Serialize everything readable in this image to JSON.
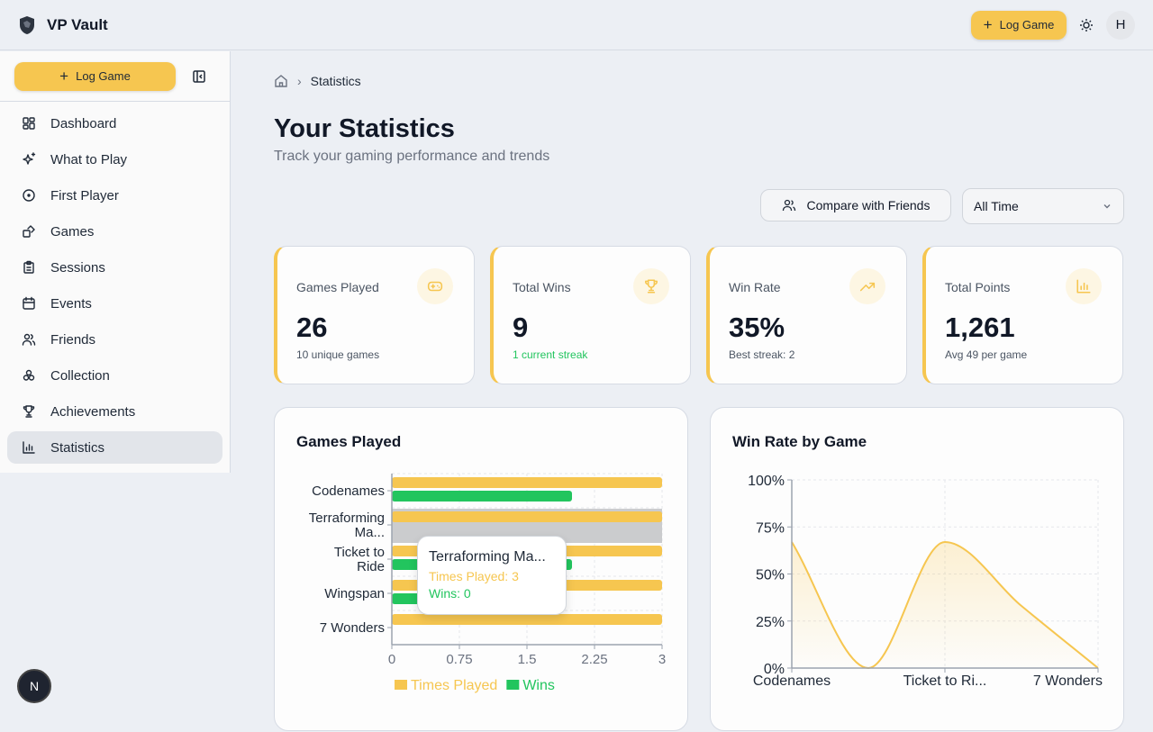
{
  "app": {
    "title": "VP Vault",
    "log_game": "Log Game",
    "avatar": "H"
  },
  "sidebar": {
    "log_game": "Log Game",
    "items": [
      {
        "label": "Dashboard",
        "icon": "grid-icon"
      },
      {
        "label": "What to Play",
        "icon": "sparkles-icon"
      },
      {
        "label": "First Player",
        "icon": "target-icon"
      },
      {
        "label": "Games",
        "icon": "dice-icon"
      },
      {
        "label": "Sessions",
        "icon": "clipboard-icon"
      },
      {
        "label": "Events",
        "icon": "calendar-icon"
      },
      {
        "label": "Friends",
        "icon": "users-icon"
      },
      {
        "label": "Collection",
        "icon": "collection-icon"
      },
      {
        "label": "Achievements",
        "icon": "trophy-icon"
      },
      {
        "label": "Statistics",
        "icon": "bar-chart-icon",
        "active": true
      }
    ]
  },
  "breadcrumb": {
    "current": "Statistics"
  },
  "page": {
    "title": "Your Statistics",
    "subtitle": "Track your gaming performance and trends",
    "compare": "Compare with Friends",
    "period": "All Time"
  },
  "cards": [
    {
      "label": "Games Played",
      "value": "26",
      "sub": "10 unique games",
      "icon": "gamepad-icon"
    },
    {
      "label": "Total Wins",
      "value": "9",
      "sub": "1 current streak",
      "icon": "trophy-icon"
    },
    {
      "label": "Win Rate",
      "value": "35%",
      "sub": "Best streak: 2",
      "icon": "trending-up-icon"
    },
    {
      "label": "Total Points",
      "value": "1,261",
      "sub": "Avg 49 per game",
      "icon": "bar-chart-icon"
    }
  ],
  "accent": "#f6c650",
  "win_color": "#22c55e",
  "chart_data": [
    {
      "type": "bar",
      "orientation": "horizontal",
      "title": "Games Played",
      "categories": [
        "Codenames",
        "Terraforming Ma...",
        "Ticket to Ride",
        "Wingspan",
        "7 Wonders"
      ],
      "series": [
        {
          "name": "Times Played",
          "color": "#f6c650",
          "values": [
            3,
            3,
            3,
            3,
            3
          ]
        },
        {
          "name": "Wins",
          "color": "#22c55e",
          "values": [
            2,
            0,
            2,
            1,
            0
          ]
        }
      ],
      "xlim": [
        0,
        3
      ],
      "xticks": [
        "0",
        "0.75",
        "1.5",
        "2.25",
        "3"
      ],
      "grid": true,
      "legend": "bottom",
      "tooltip": {
        "title": "Terraforming Ma...",
        "lines": [
          "Times Played: 3",
          "Wins: 0"
        ]
      }
    },
    {
      "type": "area",
      "title": "Win Rate by Game",
      "categories": [
        "Codenames",
        "Terraforming Ma...",
        "Ticket to Ri...",
        "Wingspan",
        "7 Wonders"
      ],
      "shown_xticks": [
        "Codenames",
        "Ticket to Ri...",
        "7 Wonders"
      ],
      "values": [
        67,
        0,
        67,
        33,
        0
      ],
      "ylim": [
        0,
        100
      ],
      "yticks": [
        "0%",
        "25%",
        "50%",
        "75%",
        "100%"
      ],
      "grid": true,
      "color": "#f6c650"
    }
  ],
  "fab": "N"
}
